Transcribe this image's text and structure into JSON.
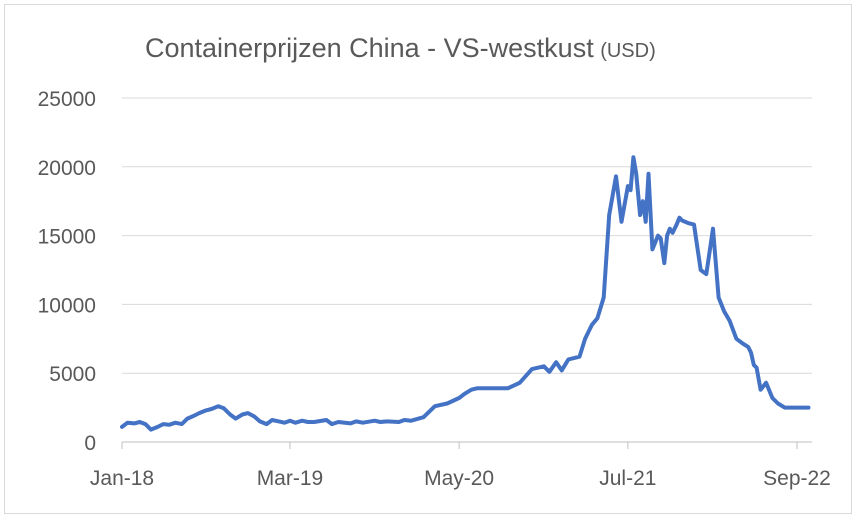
{
  "chart_data": {
    "type": "line",
    "title": "Containerprijzen China - VS-westkust",
    "title_unit": "(USD)",
    "xlabel": "",
    "ylabel": "",
    "ylim": [
      0,
      25000
    ],
    "y_ticks": [
      0,
      5000,
      10000,
      15000,
      20000,
      25000
    ],
    "y_tick_labels": [
      "0",
      "5000",
      "10000",
      "15000",
      "20000",
      "25000"
    ],
    "x_range": [
      "2018-01",
      "2022-09"
    ],
    "x_ticks": [
      "2018-01",
      "2019-03",
      "2020-05",
      "2021-07",
      "2022-09"
    ],
    "x_tick_labels": [
      "Jan-18",
      "Mar-19",
      "May-20",
      "Jul-21",
      "Sep-22"
    ],
    "grid": "horizontal",
    "legend": "none",
    "line_color": "#4472c4",
    "series": [
      {
        "x": [
          "2018-01-01",
          "2018-01-15",
          "2018-02-01",
          "2018-02-15",
          "2018-03-01",
          "2018-03-15",
          "2018-04-01",
          "2018-04-15",
          "2018-05-01",
          "2018-05-15",
          "2018-06-01",
          "2018-06-15",
          "2018-07-01",
          "2018-07-15",
          "2018-08-01",
          "2018-08-15",
          "2018-09-01",
          "2018-09-15",
          "2018-10-01",
          "2018-10-15",
          "2018-11-01",
          "2018-11-15",
          "2018-12-01",
          "2018-12-15",
          "2019-01-01",
          "2019-01-15",
          "2019-02-01",
          "2019-02-15",
          "2019-03-01",
          "2019-03-15",
          "2019-04-01",
          "2019-04-15",
          "2019-05-01",
          "2019-06-01",
          "2019-06-15",
          "2019-07-01",
          "2019-08-01",
          "2019-08-15",
          "2019-09-01",
          "2019-10-01",
          "2019-10-15",
          "2019-11-01",
          "2019-12-01",
          "2019-12-15",
          "2020-01-01",
          "2020-02-01",
          "2020-03-01",
          "2020-04-01",
          "2020-05-01",
          "2020-05-15",
          "2020-06-01",
          "2020-06-15",
          "2020-07-01",
          "2020-07-15",
          "2020-08-01",
          "2020-08-15",
          "2020-09-01",
          "2020-10-01",
          "2020-11-01",
          "2020-12-01",
          "2020-12-15",
          "2021-01-01",
          "2021-01-15",
          "2021-02-01",
          "2021-02-15",
          "2021-03-01",
          "2021-03-15",
          "2021-04-01",
          "2021-04-15",
          "2021-05-01",
          "2021-05-15",
          "2021-06-01",
          "2021-06-15",
          "2021-07-01",
          "2021-07-08",
          "2021-07-15",
          "2021-07-22",
          "2021-08-01",
          "2021-08-08",
          "2021-08-15",
          "2021-08-22",
          "2021-09-01",
          "2021-09-08",
          "2021-09-15",
          "2021-09-22",
          "2021-10-01",
          "2021-10-08",
          "2021-10-15",
          "2021-10-22",
          "2021-11-01",
          "2021-11-08",
          "2021-11-15",
          "2021-12-01",
          "2021-12-15",
          "2022-01-01",
          "2022-01-15",
          "2022-02-01",
          "2022-02-15",
          "2022-03-01",
          "2022-03-15",
          "2022-04-01",
          "2022-04-15",
          "2022-05-01",
          "2022-05-08",
          "2022-05-15",
          "2022-05-22",
          "2022-06-01",
          "2022-06-15",
          "2022-07-01",
          "2022-07-15",
          "2022-08-01",
          "2022-08-08",
          "2022-08-15",
          "2022-08-22",
          "2022-09-01",
          "2022-09-15",
          "2022-09-30"
        ],
        "values": [
          1100,
          1400,
          1350,
          1450,
          1300,
          900,
          1100,
          1300,
          1250,
          1400,
          1300,
          1700,
          1900,
          2100,
          2300,
          2400,
          2600,
          2450,
          2000,
          1700,
          2000,
          2100,
          1850,
          1500,
          1300,
          1600,
          1500,
          1400,
          1550,
          1400,
          1550,
          1450,
          1450,
          1600,
          1300,
          1450,
          1350,
          1500,
          1400,
          1550,
          1450,
          1500,
          1450,
          1600,
          1550,
          1800,
          2600,
          2800,
          3200,
          3500,
          3800,
          3900,
          3900,
          3900,
          3900,
          3900,
          3900,
          4300,
          5300,
          5500,
          5100,
          5800,
          5200,
          6000,
          6100,
          6200,
          7500,
          8500,
          9000,
          10500,
          16500,
          19300,
          16000,
          18600,
          18300,
          20700,
          19500,
          16500,
          17500,
          16000,
          19500,
          14000,
          14500,
          15000,
          14800,
          13000,
          15000,
          15500,
          15200,
          15800,
          16300,
          16100,
          15900,
          15800,
          12500,
          12200,
          15500,
          10500,
          9500,
          8800,
          7500,
          7200,
          6900,
          6500,
          5600,
          5400,
          3800,
          4300,
          3200,
          2800,
          2500,
          2500,
          2500,
          2500,
          2500,
          2500,
          2500
        ]
      }
    ]
  }
}
